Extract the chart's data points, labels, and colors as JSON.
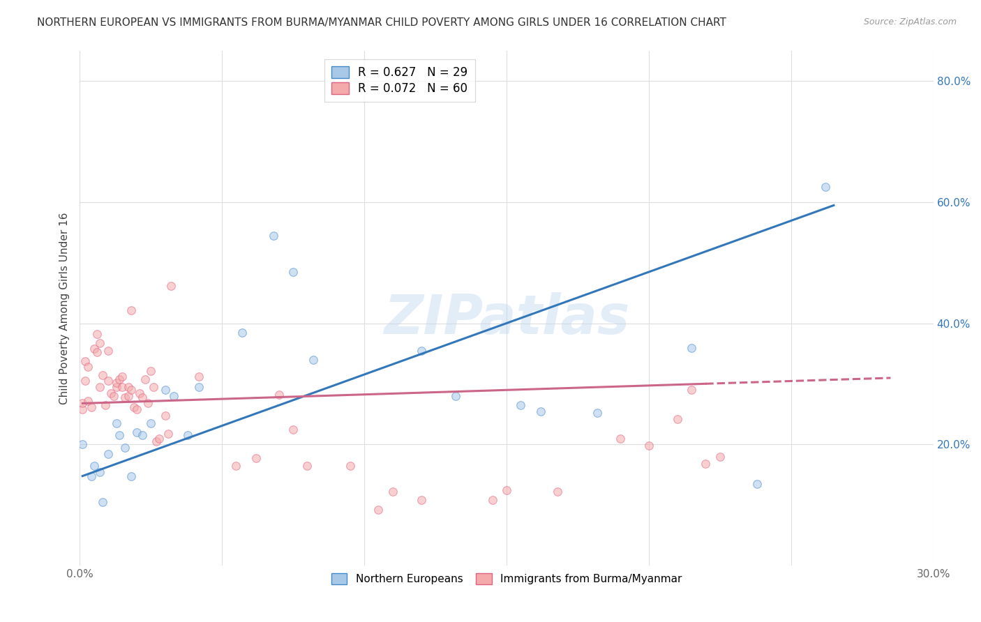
{
  "title": "NORTHERN EUROPEAN VS IMMIGRANTS FROM BURMA/MYANMAR CHILD POVERTY AMONG GIRLS UNDER 16 CORRELATION CHART",
  "source": "Source: ZipAtlas.com",
  "ylabel": "Child Poverty Among Girls Under 16",
  "xlim": [
    0.0,
    0.3
  ],
  "ylim": [
    0.0,
    0.85
  ],
  "xticks": [
    0.0,
    0.05,
    0.1,
    0.15,
    0.2,
    0.25,
    0.3
  ],
  "yticks": [
    0.0,
    0.2,
    0.4,
    0.6,
    0.8
  ],
  "xtick_labels": [
    "0.0%",
    "",
    "",
    "",
    "",
    "",
    "30.0%"
  ],
  "ytick_labels": [
    "",
    "20.0%",
    "40.0%",
    "60.0%",
    "80.0%"
  ],
  "watermark": "ZIPatlas",
  "legend_label_blue": "R = 0.627   N = 29",
  "legend_label_pink": "R = 0.072   N = 60",
  "legend_bottom_blue": "Northern Europeans",
  "legend_bottom_pink": "Immigrants from Burma/Myanmar",
  "blue_line_x0": 0.001,
  "blue_line_y0": 0.148,
  "blue_line_x1": 0.265,
  "blue_line_y1": 0.595,
  "pink_line_x0": 0.001,
  "pink_line_y0": 0.268,
  "pink_line_x1_solid": 0.22,
  "pink_line_x1": 0.285,
  "pink_line_y1": 0.31,
  "blue_scatter_x": [
    0.001,
    0.004,
    0.005,
    0.007,
    0.008,
    0.01,
    0.013,
    0.014,
    0.016,
    0.018,
    0.02,
    0.022,
    0.025,
    0.03,
    0.033,
    0.038,
    0.042,
    0.057,
    0.068,
    0.075,
    0.082,
    0.12,
    0.132,
    0.155,
    0.162,
    0.182,
    0.215,
    0.238,
    0.262
  ],
  "blue_scatter_y": [
    0.2,
    0.148,
    0.165,
    0.155,
    0.105,
    0.185,
    0.235,
    0.215,
    0.195,
    0.148,
    0.22,
    0.215,
    0.235,
    0.29,
    0.28,
    0.215,
    0.295,
    0.385,
    0.545,
    0.485,
    0.34,
    0.355,
    0.28,
    0.265,
    0.255,
    0.252,
    0.36,
    0.135,
    0.625
  ],
  "pink_scatter_x": [
    0.001,
    0.001,
    0.002,
    0.002,
    0.003,
    0.003,
    0.004,
    0.005,
    0.006,
    0.006,
    0.007,
    0.007,
    0.008,
    0.009,
    0.01,
    0.01,
    0.011,
    0.012,
    0.013,
    0.013,
    0.014,
    0.015,
    0.015,
    0.016,
    0.017,
    0.017,
    0.018,
    0.018,
    0.019,
    0.02,
    0.021,
    0.022,
    0.023,
    0.024,
    0.025,
    0.026,
    0.027,
    0.028,
    0.03,
    0.031,
    0.032,
    0.042,
    0.055,
    0.062,
    0.07,
    0.075,
    0.08,
    0.095,
    0.105,
    0.11,
    0.12,
    0.145,
    0.15,
    0.168,
    0.19,
    0.2,
    0.21,
    0.215,
    0.22,
    0.225
  ],
  "pink_scatter_y": [
    0.258,
    0.268,
    0.305,
    0.338,
    0.272,
    0.328,
    0.262,
    0.358,
    0.352,
    0.382,
    0.295,
    0.368,
    0.315,
    0.265,
    0.305,
    0.355,
    0.285,
    0.28,
    0.295,
    0.302,
    0.308,
    0.295,
    0.312,
    0.278,
    0.28,
    0.295,
    0.29,
    0.422,
    0.262,
    0.258,
    0.285,
    0.278,
    0.308,
    0.268,
    0.322,
    0.295,
    0.205,
    0.21,
    0.248,
    0.218,
    0.462,
    0.312,
    0.165,
    0.178,
    0.282,
    0.225,
    0.165,
    0.165,
    0.092,
    0.122,
    0.108,
    0.108,
    0.125,
    0.122,
    0.21,
    0.198,
    0.242,
    0.29,
    0.168,
    0.18
  ],
  "blue_color": "#a8c8e8",
  "pink_color": "#f4aaaa",
  "blue_edge_color": "#4488cc",
  "pink_edge_color": "#e06080",
  "blue_line_color": "#3377bb",
  "pink_line_color": "#cc6688",
  "background_color": "#ffffff",
  "grid_color": "#dddddd",
  "title_fontsize": 11,
  "axis_label_fontsize": 11,
  "tick_fontsize": 11,
  "scatter_size": 70,
  "scatter_alpha": 0.55,
  "scatter_linewidth": 0.8
}
